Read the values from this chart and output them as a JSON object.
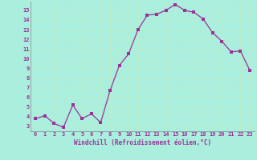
{
  "x": [
    0,
    1,
    2,
    3,
    4,
    5,
    6,
    7,
    8,
    9,
    10,
    11,
    12,
    13,
    14,
    15,
    16,
    17,
    18,
    19,
    20,
    21,
    22,
    23
  ],
  "y": [
    3.8,
    4.1,
    3.3,
    2.9,
    5.2,
    3.8,
    4.3,
    3.4,
    6.7,
    9.3,
    10.5,
    13.0,
    14.5,
    14.6,
    15.0,
    15.6,
    15.0,
    14.8,
    14.1,
    12.7,
    11.8,
    10.7,
    10.8,
    8.8
  ],
  "line_color": "#993399",
  "marker": "s",
  "marker_size": 2.5,
  "bg_color": "#aaeedd",
  "grid_color": "#ccffee",
  "xlabel": "Windchill (Refroidissement éolien,°C)",
  "xlabel_color": "#993399",
  "tick_color": "#993399",
  "ylabel_ticks": [
    3,
    4,
    5,
    6,
    7,
    8,
    9,
    10,
    11,
    12,
    13,
    14,
    15
  ],
  "xlim": [
    -0.5,
    23.5
  ],
  "ylim": [
    2.5,
    15.9
  ]
}
